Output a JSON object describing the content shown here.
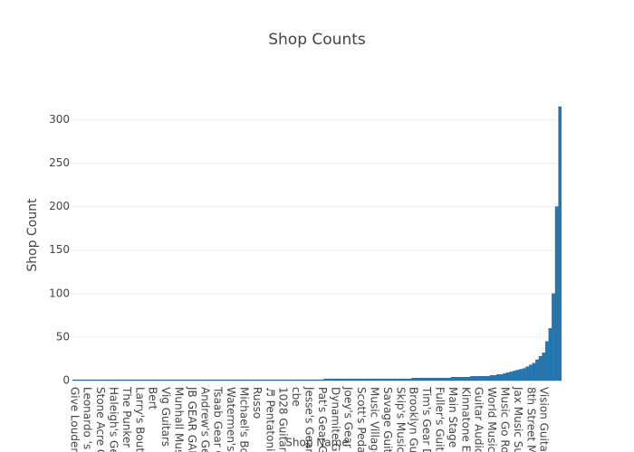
{
  "chart_data": {
    "type": "bar",
    "title": "Shop Counts",
    "x_label": "Shop Name",
    "y_label": "Shop Count",
    "categories": [
      "Give Louder",
      null,
      null,
      null,
      "Leonardo 's G",
      null,
      null,
      null,
      "Stone Acre G",
      null,
      null,
      null,
      "Haleigh's Gea",
      null,
      null,
      null,
      "The Punker P",
      null,
      null,
      null,
      "Larry's Boutiq",
      null,
      null,
      null,
      "Bert",
      null,
      null,
      null,
      "Vig Guitars",
      null,
      null,
      null,
      "Munhall Mus",
      null,
      null,
      null,
      "JB GEAR GAR",
      null,
      null,
      null,
      "Andrew's Ge",
      null,
      null,
      null,
      "Tsaab Gear C",
      null,
      null,
      null,
      "Watermen's",
      null,
      null,
      null,
      "Michael's Bo",
      null,
      null,
      null,
      "Russo",
      null,
      null,
      null,
      "♬ Pentatonic",
      null,
      null,
      null,
      "1028 Guitars",
      null,
      null,
      null,
      "cbe",
      null,
      null,
      null,
      "Jesse's Gear",
      null,
      null,
      null,
      "Pat's Gear G",
      null,
      null,
      null,
      "Dynamite G",
      null,
      null,
      null,
      "Joey's Gear",
      null,
      null,
      null,
      "Scott's Pedal",
      null,
      null,
      null,
      "Music Village",
      null,
      null,
      null,
      "Savage Guita",
      null,
      null,
      null,
      "Skip's Music",
      null,
      null,
      null,
      "Brooklyn Gui",
      null,
      null,
      null,
      "Tim's Gear D",
      null,
      null,
      null,
      "Fuller's Guita",
      null,
      null,
      null,
      "Main Stage M",
      null,
      null,
      null,
      "Kinnatone Eff",
      null,
      null,
      null,
      "Guitar Audio",
      null,
      null,
      null,
      "World Music",
      null,
      null,
      null,
      "Music Go Ro",
      null,
      null,
      null,
      "Jax Music Sup",
      null,
      null,
      null,
      "8th Street Mu",
      null,
      null,
      null,
      "Vision Guitar",
      null,
      null,
      null,
      null,
      null
    ],
    "values": [
      1,
      1,
      1,
      1,
      1,
      1,
      1,
      1,
      1,
      1,
      1,
      1,
      1,
      1,
      1,
      1,
      1,
      1,
      1,
      1,
      1,
      1,
      1,
      1,
      1,
      1,
      1,
      1,
      1,
      1,
      1,
      1,
      1,
      1,
      1,
      1,
      1,
      1,
      1,
      1,
      1,
      1,
      1,
      1,
      1,
      1,
      1,
      1,
      1,
      1,
      1,
      1,
      1,
      1,
      1,
      1,
      1,
      1,
      1,
      1,
      1,
      1,
      1,
      1,
      1,
      1,
      1,
      1,
      1,
      1,
      1,
      1,
      1,
      1,
      1,
      1,
      1,
      2,
      2,
      2,
      2,
      2,
      2,
      2,
      2,
      2,
      2,
      2,
      2,
      2,
      2,
      2,
      2,
      2,
      2,
      2,
      2,
      2,
      2,
      2,
      2,
      2,
      2,
      2,
      3,
      3,
      3,
      3,
      3,
      3,
      3,
      3,
      3,
      3,
      3,
      3,
      4,
      4,
      4,
      4,
      4,
      4,
      5,
      5,
      5,
      5,
      5,
      5,
      6,
      6,
      7,
      7,
      8,
      9,
      10,
      11,
      12,
      13,
      14,
      16,
      18,
      20,
      24,
      28,
      32,
      45,
      60,
      100,
      200,
      315
    ],
    "color": "#1f77b4",
    "ylim": [
      0,
      316
    ],
    "yticks": [
      0,
      50,
      100,
      150,
      200,
      250,
      300
    ],
    "grid": true
  }
}
